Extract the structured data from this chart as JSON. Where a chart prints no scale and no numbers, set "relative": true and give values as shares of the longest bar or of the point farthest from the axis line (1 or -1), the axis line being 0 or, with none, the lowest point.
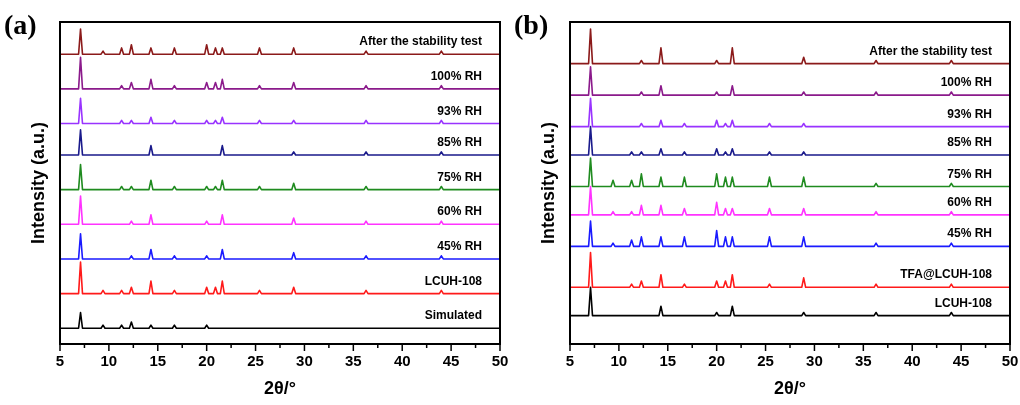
{
  "chart_data": [
    {
      "type": "line",
      "title": "(a)",
      "xlabel": "2θ/°",
      "ylabel": "Intensity (a.u.)",
      "relative": true,
      "xlim": [
        5,
        50
      ],
      "xticks": [
        5,
        {
          "value": 7.5,
          "label": null
        },
        10,
        {
          "value": 12.5,
          "label": null
        },
        15,
        {
          "value": 17.5,
          "label": null
        },
        20,
        {
          "value": 22.5,
          "label": null
        },
        25,
        {
          "value": 27.5,
          "label": null
        },
        30,
        {
          "value": 32.5,
          "label": null
        },
        35,
        {
          "value": 37.5,
          "label": null
        },
        40,
        {
          "value": 42.5,
          "label": null
        },
        45,
        {
          "value": 47.5,
          "label": null
        },
        50
      ],
      "tick_labels": "x",
      "grid": false,
      "marker": "none",
      "line_style": "solid",
      "x": [
        5,
        6.9,
        7.1,
        7.3,
        9.2,
        9.4,
        9.6,
        11.1,
        11.3,
        11.5,
        12.1,
        12.3,
        12.5,
        14.1,
        14.3,
        14.5,
        16.5,
        16.7,
        16.9,
        19.8,
        20,
        20.2,
        20.7,
        20.9,
        21.1,
        21.4,
        21.6,
        21.8,
        25.2,
        25.4,
        25.6,
        28.7,
        28.9,
        29.1,
        36.1,
        36.3,
        36.5,
        43.8,
        44,
        44.2,
        50
      ],
      "series": [
        {
          "name": "After the stability test",
          "color": "#8b1a1a",
          "values": [
            0.92,
            0.92,
            1,
            0.92,
            0.92,
            0.93,
            0.92,
            0.92,
            0.94,
            0.92,
            0.92,
            0.95,
            0.92,
            0.92,
            0.94,
            0.92,
            0.92,
            0.94,
            0.92,
            0.92,
            0.95,
            0.92,
            0.92,
            0.94,
            0.92,
            0.92,
            0.94,
            0.92,
            0.92,
            0.94,
            0.92,
            0.92,
            0.94,
            0.92,
            0.92,
            0.93,
            0.92,
            0.92,
            0.93,
            0.92,
            0.92
          ]
        },
        {
          "name": "100% RH",
          "color": "#8b1a8b",
          "values": [
            0.81,
            0.81,
            0.91,
            0.81,
            0.81,
            0.81,
            0.81,
            0.81,
            0.82,
            0.81,
            0.81,
            0.83,
            0.81,
            0.81,
            0.84,
            0.81,
            0.81,
            0.82,
            0.81,
            0.81,
            0.83,
            0.81,
            0.81,
            0.83,
            0.81,
            0.81,
            0.84,
            0.81,
            0.81,
            0.82,
            0.81,
            0.81,
            0.83,
            0.81,
            0.81,
            0.82,
            0.81,
            0.81,
            0.82,
            0.81,
            0.81
          ]
        },
        {
          "name": "93% RH",
          "color": "#9933ff",
          "values": [
            0.7,
            0.7,
            0.78,
            0.7,
            0.7,
            0.7,
            0.7,
            0.7,
            0.71,
            0.7,
            0.7,
            0.71,
            0.7,
            0.7,
            0.72,
            0.7,
            0.7,
            0.71,
            0.7,
            0.7,
            0.71,
            0.7,
            0.7,
            0.71,
            0.7,
            0.7,
            0.72,
            0.7,
            0.7,
            0.71,
            0.7,
            0.7,
            0.71,
            0.7,
            0.7,
            0.71,
            0.7,
            0.7,
            0.71,
            0.7,
            0.7
          ]
        },
        {
          "name": "85% RH",
          "color": "#1a1a8b",
          "values": [
            0.6,
            0.6,
            0.68,
            0.6,
            0.6,
            0.6,
            0.6,
            0.6,
            0.6,
            0.6,
            0.6,
            0.6,
            0.6,
            0.6,
            0.63,
            0.6,
            0.6,
            0.6,
            0.6,
            0.6,
            0.6,
            0.6,
            0.6,
            0.6,
            0.6,
            0.6,
            0.63,
            0.6,
            0.6,
            0.6,
            0.6,
            0.6,
            0.61,
            0.6,
            0.6,
            0.61,
            0.6,
            0.6,
            0.61,
            0.6,
            0.6
          ]
        },
        {
          "name": "75% RH",
          "color": "#1f8b1f",
          "values": [
            0.49,
            0.49,
            0.57,
            0.49,
            0.49,
            0.49,
            0.49,
            0.49,
            0.5,
            0.49,
            0.49,
            0.5,
            0.49,
            0.49,
            0.52,
            0.49,
            0.49,
            0.5,
            0.49,
            0.49,
            0.5,
            0.49,
            0.49,
            0.5,
            0.49,
            0.49,
            0.52,
            0.49,
            0.49,
            0.5,
            0.49,
            0.49,
            0.51,
            0.49,
            0.49,
            0.5,
            0.49,
            0.49,
            0.5,
            0.49,
            0.49
          ]
        },
        {
          "name": "60% RH",
          "color": "#ff33ff",
          "values": [
            0.38,
            0.38,
            0.47,
            0.38,
            0.38,
            0.38,
            0.38,
            0.38,
            0.38,
            0.38,
            0.38,
            0.39,
            0.38,
            0.38,
            0.41,
            0.38,
            0.38,
            0.38,
            0.38,
            0.38,
            0.39,
            0.38,
            0.38,
            0.38,
            0.38,
            0.38,
            0.41,
            0.38,
            0.38,
            0.38,
            0.38,
            0.38,
            0.4,
            0.38,
            0.38,
            0.39,
            0.38,
            0.38,
            0.39,
            0.38,
            0.38
          ]
        },
        {
          "name": "45% RH",
          "color": "#1a1aff",
          "values": [
            0.27,
            0.27,
            0.35,
            0.27,
            0.27,
            0.27,
            0.27,
            0.27,
            0.27,
            0.27,
            0.27,
            0.28,
            0.27,
            0.27,
            0.3,
            0.27,
            0.27,
            0.28,
            0.27,
            0.27,
            0.28,
            0.27,
            0.27,
            0.27,
            0.27,
            0.27,
            0.3,
            0.27,
            0.27,
            0.27,
            0.27,
            0.27,
            0.29,
            0.27,
            0.27,
            0.28,
            0.27,
            0.27,
            0.28,
            0.27,
            0.27
          ]
        },
        {
          "name": "LCUH-108",
          "color": "#ff1a1a",
          "values": [
            0.16,
            0.16,
            0.26,
            0.16,
            0.16,
            0.17,
            0.16,
            0.16,
            0.17,
            0.16,
            0.16,
            0.18,
            0.16,
            0.16,
            0.2,
            0.16,
            0.16,
            0.17,
            0.16,
            0.16,
            0.18,
            0.16,
            0.16,
            0.18,
            0.16,
            0.16,
            0.2,
            0.16,
            0.16,
            0.17,
            0.16,
            0.16,
            0.18,
            0.16,
            0.16,
            0.17,
            0.16,
            0.16,
            0.17,
            0.16,
            0.16
          ]
        },
        {
          "name": "Simulated",
          "color": "#000000",
          "values": [
            0.05,
            0.05,
            0.1,
            0.05,
            0.05,
            0.06,
            0.05,
            0.05,
            0.06,
            0.05,
            0.05,
            0.07,
            0.05,
            0.05,
            0.06,
            0.05,
            0.05,
            0.06,
            0.05,
            0.05,
            0.06,
            0.05,
            0.05,
            0.05,
            0.05,
            0.05,
            0.05,
            0.05,
            0.05,
            0.05,
            0.05,
            0.05,
            0.05,
            0.05,
            0.05,
            0.05,
            0.05,
            0.05,
            0.05,
            0.05,
            0.05
          ]
        }
      ]
    },
    {
      "type": "line",
      "title": "(b)",
      "xlabel": "2θ/°",
      "ylabel": "Intensity (a.u.)",
      "relative": true,
      "xlim": [
        5,
        50
      ],
      "xticks": [
        5,
        {
          "value": 7.5,
          "label": null
        },
        10,
        {
          "value": 12.5,
          "label": null
        },
        15,
        {
          "value": 17.5,
          "label": null
        },
        20,
        {
          "value": 22.5,
          "label": null
        },
        25,
        {
          "value": 27.5,
          "label": null
        },
        30,
        {
          "value": 32.5,
          "label": null
        },
        35,
        {
          "value": 37.5,
          "label": null
        },
        40,
        {
          "value": 42.5,
          "label": null
        },
        45,
        {
          "value": 47.5,
          "label": null
        },
        50
      ],
      "tick_labels": "x",
      "grid": false,
      "marker": "none",
      "line_style": "solid",
      "x": [
        5,
        6.9,
        7.1,
        7.3,
        9.2,
        9.4,
        9.6,
        11.1,
        11.3,
        11.5,
        12.1,
        12.3,
        12.5,
        14.1,
        14.3,
        14.5,
        16.5,
        16.7,
        16.9,
        19.8,
        20,
        20.2,
        20.7,
        20.9,
        21.1,
        21.4,
        21.6,
        21.8,
        25.2,
        25.4,
        25.6,
        28.7,
        28.9,
        29.1,
        36.1,
        36.3,
        36.5,
        43.8,
        44,
        44.2,
        50
      ],
      "series": [
        {
          "name": "After the stability test",
          "color": "#8b1a1a",
          "values": [
            0.89,
            0.89,
            1,
            0.89,
            0.89,
            0.89,
            0.89,
            0.89,
            0.89,
            0.89,
            0.89,
            0.9,
            0.89,
            0.89,
            0.94,
            0.89,
            0.89,
            0.89,
            0.89,
            0.89,
            0.9,
            0.89,
            0.89,
            0.89,
            0.89,
            0.89,
            0.94,
            0.89,
            0.89,
            0.89,
            0.89,
            0.89,
            0.91,
            0.89,
            0.89,
            0.9,
            0.89,
            0.89,
            0.9,
            0.89,
            0.89
          ]
        },
        {
          "name": "100% RH",
          "color": "#8b1a8b",
          "values": [
            0.79,
            0.79,
            0.88,
            0.79,
            0.79,
            0.79,
            0.79,
            0.79,
            0.79,
            0.79,
            0.79,
            0.8,
            0.79,
            0.79,
            0.82,
            0.79,
            0.79,
            0.79,
            0.79,
            0.79,
            0.8,
            0.79,
            0.79,
            0.79,
            0.79,
            0.79,
            0.82,
            0.79,
            0.79,
            0.79,
            0.79,
            0.79,
            0.8,
            0.79,
            0.79,
            0.8,
            0.79,
            0.79,
            0.8,
            0.79,
            0.79
          ]
        },
        {
          "name": "93% RH",
          "color": "#9933ff",
          "values": [
            0.69,
            0.69,
            0.78,
            0.69,
            0.69,
            0.69,
            0.69,
            0.69,
            0.69,
            0.69,
            0.69,
            0.7,
            0.69,
            0.69,
            0.71,
            0.69,
            0.69,
            0.7,
            0.69,
            0.69,
            0.71,
            0.69,
            0.69,
            0.7,
            0.69,
            0.69,
            0.71,
            0.69,
            0.69,
            0.7,
            0.69,
            0.69,
            0.7,
            0.69,
            0.69,
            0.69,
            0.69,
            0.69,
            0.69,
            0.69,
            0.69
          ]
        },
        {
          "name": "85% RH",
          "color": "#1a1a8b",
          "values": [
            0.6,
            0.6,
            0.69,
            0.6,
            0.6,
            0.6,
            0.6,
            0.6,
            0.61,
            0.6,
            0.6,
            0.61,
            0.6,
            0.6,
            0.62,
            0.6,
            0.6,
            0.61,
            0.6,
            0.6,
            0.62,
            0.6,
            0.6,
            0.61,
            0.6,
            0.6,
            0.62,
            0.6,
            0.6,
            0.61,
            0.6,
            0.6,
            0.61,
            0.6,
            0.6,
            0.6,
            0.6,
            0.6,
            0.6,
            0.6,
            0.6
          ]
        },
        {
          "name": "75% RH",
          "color": "#1f8b1f",
          "values": [
            0.5,
            0.5,
            0.59,
            0.5,
            0.5,
            0.52,
            0.5,
            0.5,
            0.52,
            0.5,
            0.5,
            0.54,
            0.5,
            0.5,
            0.53,
            0.5,
            0.5,
            0.53,
            0.5,
            0.5,
            0.54,
            0.5,
            0.5,
            0.53,
            0.5,
            0.5,
            0.53,
            0.5,
            0.5,
            0.53,
            0.5,
            0.5,
            0.53,
            0.5,
            0.5,
            0.51,
            0.5,
            0.5,
            0.51,
            0.5,
            0.5
          ]
        },
        {
          "name": "60% RH",
          "color": "#ff33ff",
          "values": [
            0.41,
            0.41,
            0.5,
            0.41,
            0.41,
            0.42,
            0.41,
            0.41,
            0.42,
            0.41,
            0.41,
            0.44,
            0.41,
            0.41,
            0.44,
            0.41,
            0.41,
            0.43,
            0.41,
            0.41,
            0.45,
            0.41,
            0.41,
            0.43,
            0.41,
            0.41,
            0.43,
            0.41,
            0.41,
            0.43,
            0.41,
            0.41,
            0.43,
            0.41,
            0.41,
            0.42,
            0.41,
            0.41,
            0.42,
            0.41,
            0.41
          ]
        },
        {
          "name": "45% RH",
          "color": "#1a1aff",
          "values": [
            0.31,
            0.31,
            0.39,
            0.31,
            0.31,
            0.32,
            0.31,
            0.31,
            0.33,
            0.31,
            0.31,
            0.34,
            0.31,
            0.31,
            0.34,
            0.31,
            0.31,
            0.34,
            0.31,
            0.31,
            0.36,
            0.31,
            0.31,
            0.34,
            0.31,
            0.31,
            0.34,
            0.31,
            0.31,
            0.34,
            0.31,
            0.31,
            0.34,
            0.31,
            0.31,
            0.32,
            0.31,
            0.31,
            0.32,
            0.31,
            0.31
          ]
        },
        {
          "name": "TFA@LCUH-108",
          "color": "#ff1a1a",
          "values": [
            0.18,
            0.18,
            0.29,
            0.18,
            0.18,
            0.18,
            0.18,
            0.18,
            0.19,
            0.18,
            0.18,
            0.2,
            0.18,
            0.18,
            0.22,
            0.18,
            0.18,
            0.19,
            0.18,
            0.18,
            0.2,
            0.18,
            0.18,
            0.2,
            0.18,
            0.18,
            0.22,
            0.18,
            0.18,
            0.19,
            0.18,
            0.18,
            0.21,
            0.18,
            0.18,
            0.19,
            0.18,
            0.18,
            0.19,
            0.18,
            0.18
          ]
        },
        {
          "name": "LCUH-108",
          "color": "#000000",
          "values": [
            0.09,
            0.09,
            0.18,
            0.09,
            0.09,
            0.09,
            0.09,
            0.09,
            0.09,
            0.09,
            0.09,
            0.09,
            0.09,
            0.09,
            0.12,
            0.09,
            0.09,
            0.09,
            0.09,
            0.09,
            0.1,
            0.09,
            0.09,
            0.09,
            0.09,
            0.09,
            0.12,
            0.09,
            0.09,
            0.09,
            0.09,
            0.09,
            0.1,
            0.09,
            0.09,
            0.1,
            0.09,
            0.09,
            0.1,
            0.09,
            0.09
          ]
        }
      ]
    }
  ]
}
